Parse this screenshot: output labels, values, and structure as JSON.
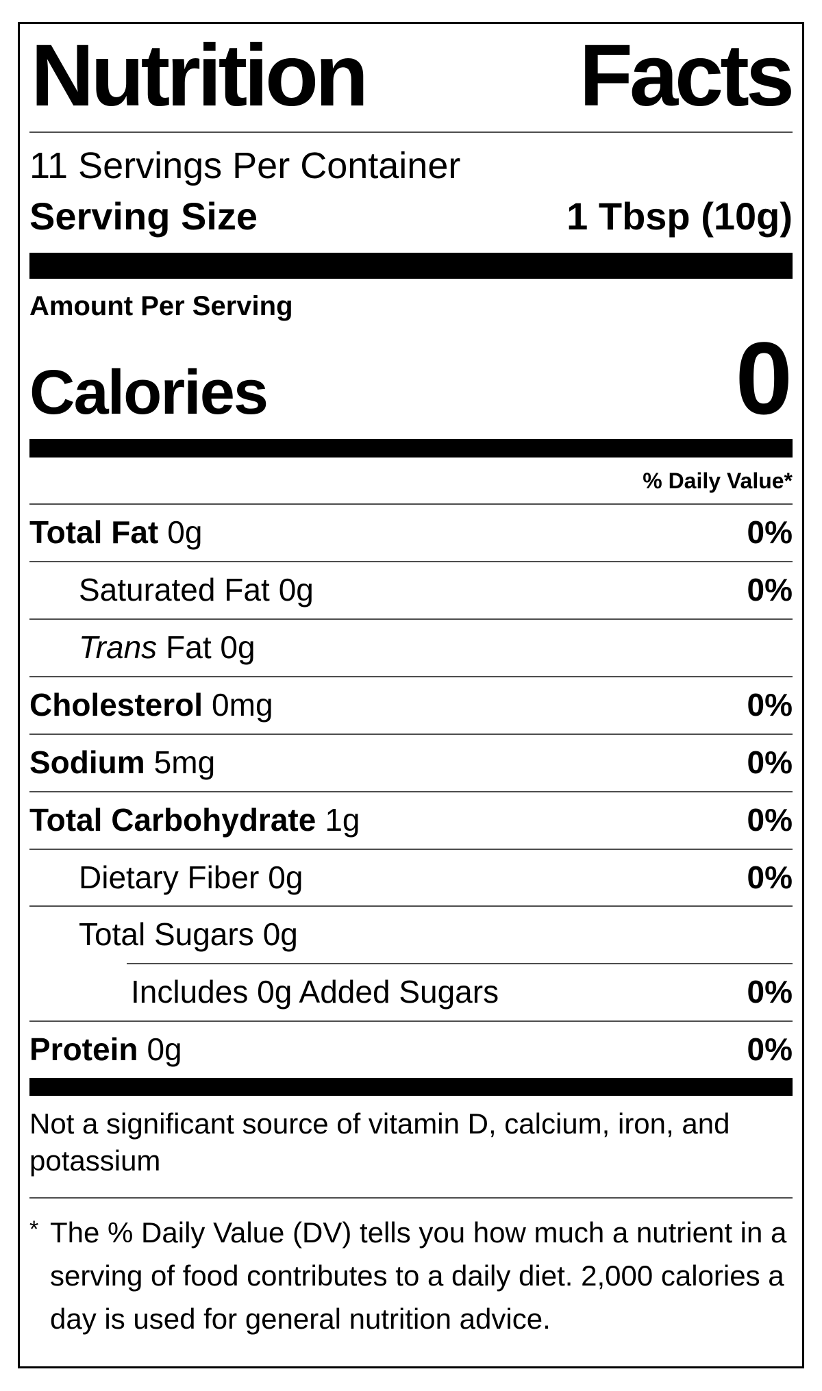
{
  "label": {
    "title_words": [
      "Nutrition",
      "Facts"
    ],
    "servings_per_container": "11 Servings Per Container",
    "serving_size_label": "Serving Size",
    "serving_size_value": "1 Tbsp (10g)",
    "amount_per_serving": "Amount Per Serving",
    "calories_label": "Calories",
    "calories_value": "0",
    "daily_value_header": "% Daily Value*",
    "not_significant_lines": {
      "line1": "Not a significant source of vitamin D, calcium, iron, and",
      "line2": "potassium"
    },
    "footnote_marker": "*",
    "footnote_lines": {
      "line1": "The % Daily Value (DV) tells you how much a nutrient in a",
      "line2": "serving of food contributes to a daily diet. 2,000 calories a",
      "line3": "day is used for general nutrition advice."
    },
    "colors": {
      "ink": "#000000",
      "hairline": "#4d4d4d",
      "background": "#ffffff"
    }
  },
  "nutrients": [
    {
      "name": "Total Fat",
      "amount": "0g",
      "dv": "0%"
    },
    {
      "name": "Saturated Fat",
      "amount": "0g",
      "dv": "0%"
    },
    {
      "name": "Trans",
      "amount": "Fat 0g",
      "dv": ""
    },
    {
      "name": "Cholesterol",
      "amount": "0mg",
      "dv": "0%"
    },
    {
      "name": "Sodium",
      "amount": "5mg",
      "dv": "0%"
    },
    {
      "name": "Total Carbohydrate",
      "amount": "1g",
      "dv": "0%"
    },
    {
      "name": "Dietary Fiber",
      "amount": "0g",
      "dv": "0%"
    },
    {
      "name": "Total Sugars",
      "amount": "0g",
      "dv": ""
    },
    {
      "name": "Includes 0g Added Sugars",
      "amount": "",
      "dv": "0%"
    },
    {
      "name": "Protein",
      "amount": "0g",
      "dv": "0%"
    }
  ]
}
